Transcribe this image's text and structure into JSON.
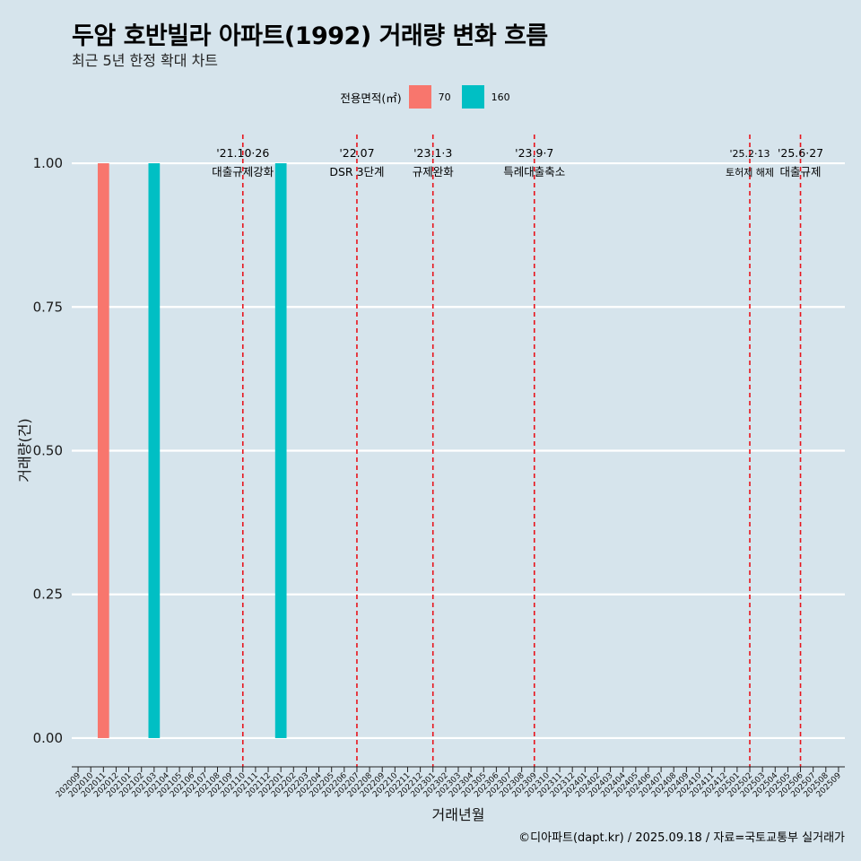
{
  "title": "두암 호반빌라 아파트(1992) 거래량 변화 흐름",
  "subtitle": "최근 5년 한정 확대 차트",
  "caption": "©디아파트(dapt.kr) / 2025.09.18 / 자료=국토교통부 실거래가",
  "legend": {
    "title": "전용면적(㎡)",
    "items": [
      {
        "label": "70",
        "color": "#F8766D"
      },
      {
        "label": "160",
        "color": "#00BFC4"
      }
    ]
  },
  "chart_data": {
    "type": "bar",
    "title": "두암 호반빌라 아파트(1992) 거래량 변화 흐름",
    "xlabel": "거래년월",
    "ylabel": "거래량(건)",
    "ylim": [
      -0.05,
      1.05
    ],
    "yticks": [
      0.0,
      0.25,
      0.5,
      0.75,
      1.0
    ],
    "ytick_labels": [
      "0.00",
      "0.25",
      "0.50",
      "0.75",
      "1.00"
    ],
    "categories": [
      "202009",
      "202010",
      "202011",
      "202012",
      "202101",
      "202102",
      "202103",
      "202104",
      "202105",
      "202106",
      "202107",
      "202108",
      "202109",
      "202110",
      "202111",
      "202112",
      "202201",
      "202202",
      "202203",
      "202204",
      "202205",
      "202206",
      "202207",
      "202208",
      "202209",
      "202210",
      "202211",
      "202212",
      "202301",
      "202302",
      "202303",
      "202304",
      "202305",
      "202306",
      "202307",
      "202308",
      "202309",
      "202310",
      "202311",
      "202312",
      "202401",
      "202402",
      "202403",
      "202404",
      "202405",
      "202406",
      "202407",
      "202408",
      "202409",
      "202410",
      "202411",
      "202412",
      "202501",
      "202502",
      "202503",
      "202504",
      "202505",
      "202506",
      "202507",
      "202508",
      "202509"
    ],
    "series": [
      {
        "name": "70",
        "color": "#F8766D",
        "points": [
          {
            "x": "202011",
            "y": 1
          }
        ]
      },
      {
        "name": "160",
        "color": "#00BFC4",
        "points": [
          {
            "x": "202103",
            "y": 1
          },
          {
            "x": "202201",
            "y": 1
          }
        ]
      }
    ],
    "events": [
      {
        "x": "202110",
        "date": "'21.10·26",
        "label": "대출규제강화"
      },
      {
        "x": "202207",
        "date": "'22.07",
        "label": "DSR 3단계"
      },
      {
        "x": "202301",
        "date": "'23.1·3",
        "label": "규제완화"
      },
      {
        "x": "202309",
        "date": "'23.9·7",
        "label": "특례대출축소"
      },
      {
        "x": "202502",
        "date": "'25.2·13",
        "label": "토허제 해제"
      },
      {
        "x": "202506",
        "date": "'25.6·27",
        "label": "대출규제"
      }
    ]
  }
}
